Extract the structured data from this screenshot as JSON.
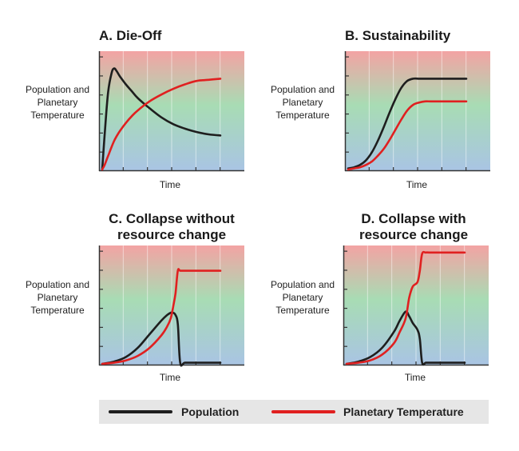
{
  "chart_data": [
    {
      "type": "line",
      "title": "A. Die-Off",
      "xlabel": "Time",
      "ylabel": "Population and Planetary Temperature",
      "x": [
        0,
        0.02,
        0.05,
        0.08,
        0.1,
        0.12,
        0.15,
        0.2,
        0.25,
        0.3,
        0.4,
        0.5,
        0.6,
        0.7,
        0.8,
        0.9,
        1.0
      ],
      "series": [
        {
          "name": "Population",
          "color": "#1e1e1e",
          "values": [
            0,
            0.3,
            0.68,
            0.85,
            0.89,
            0.87,
            0.82,
            0.75,
            0.69,
            0.63,
            0.54,
            0.46,
            0.4,
            0.36,
            0.33,
            0.31,
            0.3
          ]
        },
        {
          "name": "Planetary Temperature",
          "color": "#e02020",
          "values": [
            0,
            0.04,
            0.12,
            0.2,
            0.25,
            0.29,
            0.34,
            0.41,
            0.47,
            0.52,
            0.6,
            0.66,
            0.71,
            0.75,
            0.78,
            0.79,
            0.8
          ]
        }
      ]
    },
    {
      "type": "line",
      "title": "B. Sustainability",
      "xlabel": "Time",
      "ylabel": "Population and Planetary Temperature",
      "x": [
        0,
        0.05,
        0.1,
        0.15,
        0.2,
        0.25,
        0.3,
        0.35,
        0.4,
        0.45,
        0.5,
        0.55,
        0.6,
        0.65,
        0.7,
        0.8,
        0.9,
        1.0
      ],
      "series": [
        {
          "name": "Population",
          "color": "#1e1e1e",
          "values": [
            0.01,
            0.02,
            0.04,
            0.08,
            0.15,
            0.25,
            0.37,
            0.5,
            0.62,
            0.72,
            0.78,
            0.8,
            0.8,
            0.8,
            0.8,
            0.8,
            0.8,
            0.8
          ]
        },
        {
          "name": "Planetary Temperature",
          "color": "#e02020",
          "values": [
            0,
            0.01,
            0.02,
            0.04,
            0.07,
            0.12,
            0.18,
            0.26,
            0.35,
            0.44,
            0.52,
            0.57,
            0.59,
            0.6,
            0.6,
            0.6,
            0.6,
            0.6
          ]
        }
      ]
    },
    {
      "type": "line",
      "title": "C. Collapse without resource change",
      "xlabel": "Time",
      "ylabel": "Population and Planetary Temperature",
      "x": [
        0,
        0.1,
        0.2,
        0.3,
        0.4,
        0.5,
        0.55,
        0.58,
        0.6,
        0.62,
        0.64,
        0.66,
        0.7,
        0.8,
        0.9,
        1.0
      ],
      "series": [
        {
          "name": "Population",
          "color": "#1e1e1e",
          "values": [
            0,
            0.02,
            0.06,
            0.14,
            0.26,
            0.38,
            0.43,
            0.45,
            0.45,
            0.43,
            0.35,
            0.01,
            0.01,
            0.01,
            0.01,
            0.01
          ]
        },
        {
          "name": "Planetary Temperature",
          "color": "#e02020",
          "values": [
            0,
            0.01,
            0.03,
            0.07,
            0.14,
            0.25,
            0.33,
            0.4,
            0.5,
            0.62,
            0.82,
            0.82,
            0.82,
            0.82,
            0.82,
            0.82
          ]
        }
      ]
    },
    {
      "type": "line",
      "title": "D. Collapse with resource change",
      "xlabel": "Time",
      "ylabel": "Population and Planetary Temperature",
      "x": [
        0,
        0.1,
        0.2,
        0.3,
        0.4,
        0.45,
        0.5,
        0.53,
        0.56,
        0.6,
        0.62,
        0.64,
        0.67,
        0.7,
        0.8,
        0.9,
        1.0
      ],
      "series": [
        {
          "name": "Population",
          "color": "#1e1e1e",
          "values": [
            0,
            0.02,
            0.06,
            0.14,
            0.28,
            0.38,
            0.46,
            0.42,
            0.36,
            0.3,
            0.22,
            0.01,
            0.01,
            0.01,
            0.01,
            0.01,
            0.01
          ]
        },
        {
          "name": "Planetary Temperature",
          "color": "#e02020",
          "values": [
            0,
            0.01,
            0.03,
            0.08,
            0.18,
            0.28,
            0.4,
            0.58,
            0.68,
            0.72,
            0.82,
            0.97,
            0.98,
            0.98,
            0.98,
            0.98,
            0.98
          ]
        }
      ]
    }
  ],
  "legend": {
    "items": [
      {
        "label": "Population",
        "color": "#1e1e1e"
      },
      {
        "label": "Planetary Temperature",
        "color": "#e02020"
      }
    ]
  }
}
